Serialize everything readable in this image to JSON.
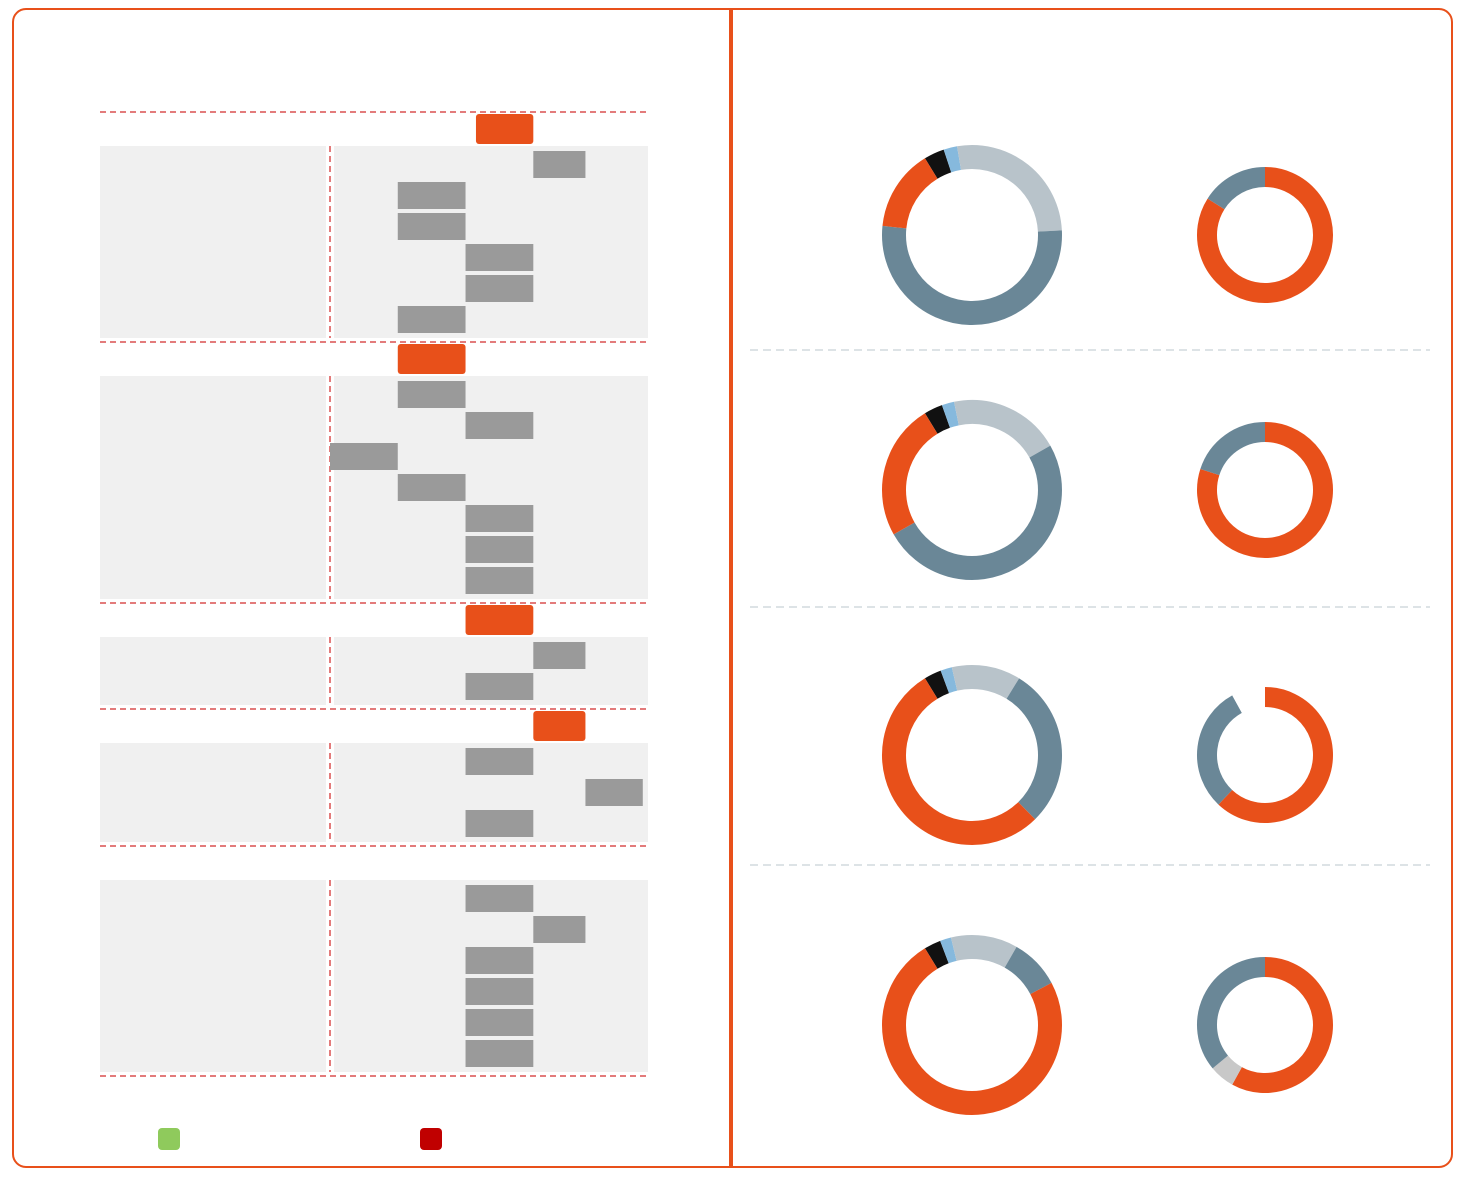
{
  "colors": {
    "frame": "#e8501a",
    "accent": "#e8501a",
    "bar": "#9a9a9a",
    "panel": "#f0f0f0",
    "ring_slate": "#6a8797",
    "ring_light": "#b8c3ca",
    "ring_black": "#111111",
    "ring_blue": "#86b9dd",
    "legend_a": "#8fca5c",
    "legend_b": "#c00000"
  },
  "left": {
    "title": "",
    "col_left_header": "",
    "col_right_header": "",
    "legend": [
      {
        "label": "",
        "color": "#8fca5c"
      },
      {
        "label": "",
        "color": "#c00000"
      }
    ]
  },
  "right": {
    "title": "",
    "legend_left": "",
    "legend_right": "",
    "group_titles": [
      "",
      "",
      "",
      ""
    ]
  },
  "chart_data": [
    {
      "type": "bar",
      "title": "",
      "orientation": "horizontal-range",
      "note_values_unreadable": true,
      "groups": [
        {
          "name": "",
          "headline_bar": {
            "label": "",
            "start": 0.56,
            "end": 0.78,
            "color": "#e8501a"
          },
          "rows": [
            {
              "label": "",
              "start": 0.78,
              "end": 0.98
            },
            {
              "label": "",
              "start": 0.26,
              "end": 0.52
            },
            {
              "label": "",
              "start": 0.26,
              "end": 0.52
            },
            {
              "label": "",
              "start": 0.52,
              "end": 0.78
            },
            {
              "label": "",
              "start": 0.52,
              "end": 0.78
            },
            {
              "label": "",
              "start": 0.26,
              "end": 0.52
            }
          ]
        },
        {
          "name": "",
          "headline_bar": {
            "label": "",
            "start": 0.26,
            "end": 0.52,
            "color": "#e8501a"
          },
          "rows": [
            {
              "label": "",
              "start": 0.26,
              "end": 0.52
            },
            {
              "label": "",
              "start": 0.52,
              "end": 0.78
            },
            {
              "label": "",
              "start": 0.0,
              "end": 0.26
            },
            {
              "label": "",
              "start": 0.26,
              "end": 0.52
            },
            {
              "label": "",
              "start": 0.52,
              "end": 0.78
            },
            {
              "label": "",
              "start": 0.52,
              "end": 0.78
            },
            {
              "label": "",
              "start": 0.52,
              "end": 0.78
            }
          ]
        },
        {
          "name": "",
          "headline_bar": {
            "label": "",
            "start": 0.52,
            "end": 0.78,
            "color": "#e8501a"
          },
          "rows": [
            {
              "label": "",
              "start": 0.78,
              "end": 0.98
            },
            {
              "label": "",
              "start": 0.52,
              "end": 0.78
            }
          ]
        },
        {
          "name": "",
          "headline_bar": {
            "label": "",
            "start": 0.78,
            "end": 0.98,
            "color": "#e8501a"
          },
          "rows": [
            {
              "label": "",
              "start": 0.52,
              "end": 0.78
            },
            {
              "label": "",
              "start": 0.98,
              "end": 1.2
            },
            {
              "label": "",
              "start": 0.52,
              "end": 0.78
            }
          ]
        },
        {
          "name": "",
          "headline_bar": null,
          "rows": [
            {
              "label": "",
              "start": 0.52,
              "end": 0.78
            },
            {
              "label": "",
              "start": 0.78,
              "end": 0.98
            },
            {
              "label": "",
              "start": 0.52,
              "end": 0.78
            },
            {
              "label": "",
              "start": 0.52,
              "end": 0.78
            },
            {
              "label": "",
              "start": 0.52,
              "end": 0.78
            },
            {
              "label": "",
              "start": 0.52,
              "end": 0.78
            }
          ]
        }
      ]
    },
    {
      "type": "pie",
      "donut": true,
      "title": "",
      "groups": [
        {
          "name": "",
          "rings": [
            {
              "slices": [
                {
                  "label": "",
                  "value": 3,
                  "color": "#111111"
                },
                {
                  "label": "",
                  "value": 2,
                  "color": "#86b9dd"
                },
                {
                  "label": "",
                  "value": 22,
                  "color": "#b8c3ca"
                },
                {
                  "label": "",
                  "value": 43,
                  "color": "#6a8797"
                },
                {
                  "label": "",
                  "value": 12,
                  "color": "#e8501a"
                }
              ]
            },
            {
              "slices": [
                {
                  "label": "",
                  "value": 84,
                  "color": "#e8501a"
                },
                {
                  "label": "",
                  "value": 16,
                  "color": "#6a8797"
                }
              ]
            }
          ]
        },
        {
          "name": "",
          "rings": [
            {
              "slices": [
                {
                  "label": "",
                  "value": 3,
                  "color": "#111111"
                },
                {
                  "label": "",
                  "value": 2,
                  "color": "#86b9dd"
                },
                {
                  "label": "",
                  "value": 18,
                  "color": "#b8c3ca"
                },
                {
                  "label": "",
                  "value": 45,
                  "color": "#6a8797"
                },
                {
                  "label": "",
                  "value": 22,
                  "color": "#e8501a"
                }
              ]
            },
            {
              "slices": [
                {
                  "label": "",
                  "value": 80,
                  "color": "#e8501a"
                },
                {
                  "label": "",
                  "value": 20,
                  "color": "#6a8797"
                }
              ]
            }
          ]
        },
        {
          "name": "",
          "rings": [
            {
              "slices": [
                {
                  "label": "",
                  "value": 3,
                  "color": "#111111"
                },
                {
                  "label": "",
                  "value": 2,
                  "color": "#86b9dd"
                },
                {
                  "label": "",
                  "value": 12,
                  "color": "#b8c3ca"
                },
                {
                  "label": "",
                  "value": 28,
                  "color": "#6a8797"
                },
                {
                  "label": "",
                  "value": 52,
                  "color": "#e8501a"
                }
              ]
            },
            {
              "slices": [
                {
                  "label": "",
                  "value": 62,
                  "color": "#e8501a"
                },
                {
                  "label": "",
                  "value": 30,
                  "color": "#6a8797"
                },
                {
                  "label": "",
                  "value": 8,
                  "color": "#ffffff"
                }
              ]
            }
          ]
        },
        {
          "name": "",
          "rings": [
            {
              "slices": [
                {
                  "label": "",
                  "value": 3,
                  "color": "#111111"
                },
                {
                  "label": "",
                  "value": 2,
                  "color": "#86b9dd"
                },
                {
                  "label": "",
                  "value": 12,
                  "color": "#b8c3ca"
                },
                {
                  "label": "",
                  "value": 9,
                  "color": "#6a8797"
                },
                {
                  "label": "",
                  "value": 74,
                  "color": "#e8501a"
                }
              ]
            },
            {
              "slices": [
                {
                  "label": "",
                  "value": 58,
                  "color": "#e8501a"
                },
                {
                  "label": "",
                  "value": 6,
                  "color": "#c8c8c8"
                },
                {
                  "label": "",
                  "value": 36,
                  "color": "#6a8797"
                }
              ]
            }
          ]
        }
      ]
    }
  ]
}
